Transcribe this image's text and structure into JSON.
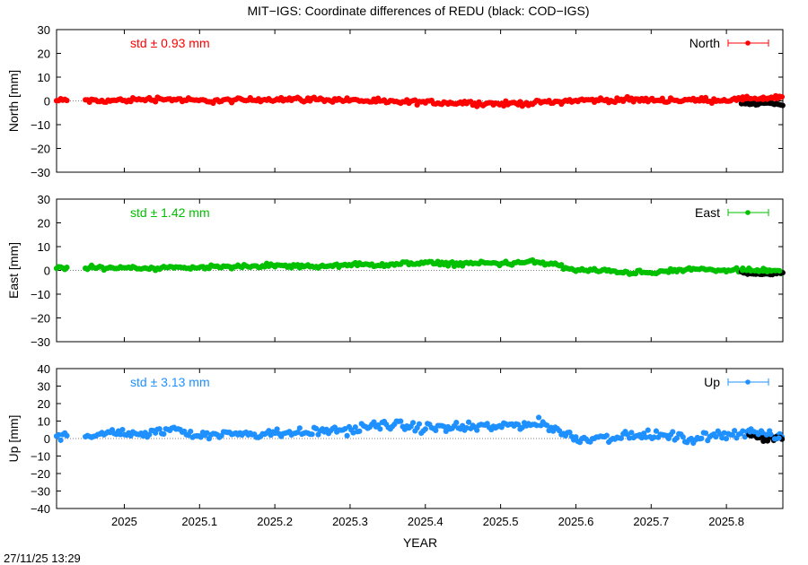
{
  "title": "MIT−IGS: Coordinate differences of REDU (black: COD−IGS)",
  "xlabel": "YEAR",
  "timestamp": "27/11/25 13:29",
  "colors": {
    "north": "#ff0000",
    "east": "#00c000",
    "up": "#1e90ff",
    "cod": "#000000"
  },
  "chart_data": [
    {
      "type": "scatter",
      "name": "north",
      "ylabel": "North [mm]",
      "legend": "North",
      "legend_position": "top-right",
      "std_label": "std ± 0.93 mm",
      "ylim": [
        -30,
        30
      ],
      "yticks": [
        "30",
        "20",
        "10",
        "0",
        "−10",
        "−20",
        "−30"
      ],
      "xlim": [
        2024.91,
        2025.875
      ],
      "xticks": [
        "2025",
        "2025.1",
        "2025.2",
        "2025.3",
        "2025.4",
        "2025.5",
        "2025.6",
        "2025.7",
        "2025.8"
      ],
      "mit_anchors": [
        [
          2024.91,
          0
        ],
        [
          2024.94,
          0.8
        ],
        [
          2024.96,
          -0.2
        ],
        [
          2025.0,
          0.3
        ],
        [
          2025.05,
          0.9
        ],
        [
          2025.1,
          0
        ],
        [
          2025.15,
          0.2
        ],
        [
          2025.2,
          0.8
        ],
        [
          2025.25,
          0.6
        ],
        [
          2025.3,
          0.4
        ],
        [
          2025.35,
          -0.5
        ],
        [
          2025.4,
          -0.6
        ],
        [
          2025.45,
          -0.8
        ],
        [
          2025.5,
          -1.3
        ],
        [
          2025.55,
          -0.8
        ],
        [
          2025.6,
          0.2
        ],
        [
          2025.65,
          0.4
        ],
        [
          2025.7,
          0.4
        ],
        [
          2025.75,
          0.3
        ],
        [
          2025.8,
          0.4
        ],
        [
          2025.85,
          0.9
        ],
        [
          2025.875,
          1.5
        ]
      ],
      "cod_anchors": [
        [
          2025.82,
          -1.5
        ],
        [
          2025.84,
          -1.2
        ],
        [
          2025.86,
          -1.0
        ],
        [
          2025.875,
          -2.2
        ]
      ],
      "gaps": [
        [
          2024.925,
          2024.947
        ]
      ]
    },
    {
      "type": "scatter",
      "name": "east",
      "ylabel": "East [mm]",
      "legend": "East",
      "legend_position": "top-right",
      "std_label": "std ± 1.42 mm",
      "ylim": [
        -30,
        30
      ],
      "yticks": [
        "30",
        "20",
        "10",
        "0",
        "−10",
        "−20",
        "−30"
      ],
      "xlim": [
        2024.91,
        2025.875
      ],
      "xticks": [
        "2025",
        "2025.1",
        "2025.2",
        "2025.3",
        "2025.4",
        "2025.5",
        "2025.6",
        "2025.7",
        "2025.8"
      ],
      "mit_anchors": [
        [
          2024.91,
          1.0
        ],
        [
          2024.95,
          1.0
        ],
        [
          2025.0,
          1.2
        ],
        [
          2025.05,
          1.0
        ],
        [
          2025.1,
          1.3
        ],
        [
          2025.15,
          1.6
        ],
        [
          2025.2,
          2.0
        ],
        [
          2025.25,
          1.6
        ],
        [
          2025.3,
          2.2
        ],
        [
          2025.35,
          2.5
        ],
        [
          2025.4,
          3.0
        ],
        [
          2025.45,
          2.8
        ],
        [
          2025.5,
          3.0
        ],
        [
          2025.55,
          3.5
        ],
        [
          2025.575,
          2.5
        ],
        [
          2025.59,
          0.3
        ],
        [
          2025.65,
          -0.4
        ],
        [
          2025.7,
          -1.2
        ],
        [
          2025.75,
          0.5
        ],
        [
          2025.8,
          0.0
        ],
        [
          2025.85,
          -0.2
        ],
        [
          2025.875,
          -0.5
        ]
      ],
      "cod_anchors": [
        [
          2025.82,
          -1.0
        ],
        [
          2025.84,
          -1.8
        ],
        [
          2025.86,
          -1.5
        ],
        [
          2025.875,
          -1.0
        ]
      ],
      "gaps": [
        [
          2024.925,
          2024.947
        ]
      ]
    },
    {
      "type": "scatter",
      "name": "up",
      "ylabel": "Up [mm]",
      "legend": "Up",
      "legend_position": "top-right",
      "std_label": "std ± 3.13 mm",
      "ylim": [
        -40,
        40
      ],
      "yticks": [
        "40",
        "30",
        "20",
        "10",
        "0",
        "−10",
        "−20",
        "−30",
        "−40"
      ],
      "xlim": [
        2024.91,
        2025.875
      ],
      "xticks": [
        "2025",
        "2025.1",
        "2025.2",
        "2025.3",
        "2025.4",
        "2025.5",
        "2025.6",
        "2025.7",
        "2025.8"
      ],
      "mit_anchors": [
        [
          2024.91,
          2.0
        ],
        [
          2024.95,
          2.0
        ],
        [
          2025.0,
          4.0
        ],
        [
          2025.03,
          2.0
        ],
        [
          2025.07,
          6.0
        ],
        [
          2025.1,
          2.0
        ],
        [
          2025.15,
          3.0
        ],
        [
          2025.2,
          3.0
        ],
        [
          2025.25,
          4.0
        ],
        [
          2025.3,
          5.0
        ],
        [
          2025.35,
          8.0
        ],
        [
          2025.4,
          6.0
        ],
        [
          2025.45,
          6.0
        ],
        [
          2025.5,
          7.0
        ],
        [
          2025.55,
          9.0
        ],
        [
          2025.58,
          4.0
        ],
        [
          2025.6,
          0.0
        ],
        [
          2025.65,
          1.0
        ],
        [
          2025.7,
          2.0
        ],
        [
          2025.75,
          0.0
        ],
        [
          2025.8,
          2.5
        ],
        [
          2025.83,
          4.0
        ],
        [
          2025.875,
          0.0
        ]
      ],
      "cod_anchors": [
        [
          2025.83,
          3.0
        ],
        [
          2025.85,
          -0.5
        ],
        [
          2025.875,
          1.0
        ]
      ],
      "gaps": [
        [
          2024.925,
          2024.947
        ]
      ]
    }
  ]
}
